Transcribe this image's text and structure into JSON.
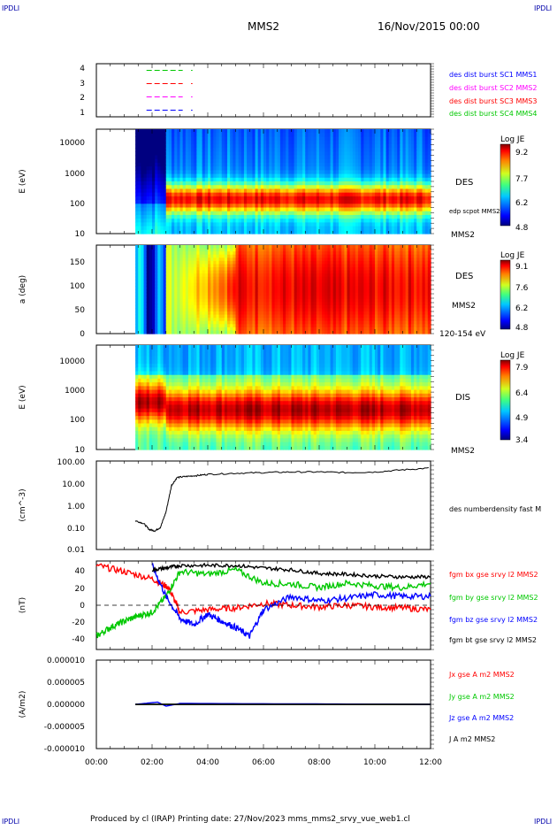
{
  "corner_label": "IPDLI",
  "header": {
    "spacecraft": "MMS2",
    "datetime": "16/Nov/2015 00:00"
  },
  "footer": {
    "text": "Produced by cl (IRAP)   Printing date: 27/Nov/2023   mms_mms2_srvy_vue_web1.cl"
  },
  "time_axis": {
    "ticks": [
      "00:00",
      "02:00",
      "04:00",
      "06:00",
      "08:00",
      "10:00",
      "12:00"
    ]
  },
  "colors": {
    "blue": "#0000ff",
    "magenta": "#ff00ff",
    "red": "#ff0000",
    "green": "#00c800",
    "black": "#000000"
  },
  "panels": {
    "burst": {
      "yticks": [
        "4",
        "3",
        "2",
        "1"
      ],
      "legend": [
        {
          "text": "des dist burst SC1 MMS1",
          "color": "#0000ff"
        },
        {
          "text": "des dist burst SC2 MMS2",
          "color": "#ff00ff"
        },
        {
          "text": "des dist burst SC3 MMS3",
          "color": "#ff0000"
        },
        {
          "text": "des dist burst SC4 MMS4",
          "color": "#00c800"
        }
      ]
    },
    "des_energy": {
      "ylabel": "E (eV)",
      "yticks": [
        "10000",
        "1000",
        "100",
        "10"
      ],
      "right_label": "DES",
      "note": "edp scpot MMS2",
      "bottom_label": "MMS2",
      "colorbar": {
        "title": "Log JE",
        "ticks": [
          "9.2",
          "7.7",
          "6.2",
          "4.8"
        ]
      }
    },
    "des_pitch": {
      "ylabel": "a (deg)",
      "yticks": [
        "150",
        "100",
        "50",
        "0"
      ],
      "right_label": "DES",
      "note": "MMS2",
      "bottom_label": "120-154 eV",
      "colorbar": {
        "title": "Log JE",
        "ticks": [
          "9.1",
          "7.6",
          "6.2",
          "4.8"
        ]
      }
    },
    "dis_energy": {
      "ylabel": "E (eV)",
      "yticks": [
        "10000",
        "1000",
        "100",
        "10"
      ],
      "right_label": "DIS",
      "bottom_label": "MMS2",
      "colorbar": {
        "title": "Log JE",
        "ticks": [
          "7.9",
          "6.4",
          "4.9",
          "3.4"
        ]
      }
    },
    "density": {
      "ylabel": "(cm^-3)",
      "yticks": [
        "100.00",
        "10.00",
        "1.00",
        "0.10",
        "0.01"
      ],
      "legend": "des numberdensity fast M"
    },
    "bfield": {
      "ylabel": "(nT)",
      "yticks": [
        "40",
        "20",
        "0",
        "-20",
        "-40"
      ],
      "legend": [
        {
          "text": "fgm bx gse srvy l2 MMS2",
          "color": "#ff0000"
        },
        {
          "text": "fgm by gse srvy l2 MMS2",
          "color": "#00c800"
        },
        {
          "text": "fgm bz gse srvy l2 MMS2",
          "color": "#0000ff"
        },
        {
          "text": "fgm bt gse srvy l2 MMS2",
          "color": "#000000"
        }
      ]
    },
    "current": {
      "ylabel": "(A/m2)",
      "yticks": [
        "0.000010",
        "0.000005",
        "0.000000",
        "-0.000005",
        "-0.000010"
      ],
      "legend": [
        {
          "text": "Jx gse A m2 MMS2",
          "color": "#ff0000"
        },
        {
          "text": "Jy gse A m2 MMS2",
          "color": "#00c800"
        },
        {
          "text": "Jz gse A m2 MMS2",
          "color": "#0000ff"
        },
        {
          "text": "J A m2 MMS2",
          "color": "#000000"
        }
      ]
    }
  },
  "chart_data": [
    {
      "type": "line",
      "panel": "burst",
      "x_unit": "hours UT",
      "ylim": [
        0.5,
        4.5
      ],
      "series": [
        {
          "y": 4,
          "segments": [
            [
              1.8,
              3.1
            ],
            [
              3.4,
              3.45
            ]
          ],
          "color": "#00c800"
        },
        {
          "y": 3,
          "segments": [
            [
              1.8,
              3.1
            ],
            [
              3.4,
              3.45
            ]
          ],
          "color": "#ff0000"
        },
        {
          "y": 2,
          "segments": [
            [
              1.8,
              3.1
            ],
            [
              3.4,
              3.45
            ]
          ],
          "color": "#ff00ff"
        },
        {
          "y": 1,
          "segments": [
            [
              1.8,
              3.1
            ],
            [
              3.4,
              3.45
            ]
          ],
          "color": "#0000ff"
        }
      ]
    },
    {
      "type": "heatmap",
      "panel": "des_energy",
      "yscale": "log",
      "ylim": [
        10,
        30000
      ],
      "data_start": 1.4,
      "data_end": 12.0,
      "profile": [
        [
          1.4,
          2.5,
          "high energy flux low energy"
        ],
        [
          2.5,
          4.5,
          "peak 60-120 eV"
        ],
        [
          4.5,
          12,
          "peak ~100 eV, band 40-400 eV"
        ]
      ]
    },
    {
      "type": "heatmap",
      "panel": "des_pitch",
      "ylim": [
        0,
        180
      ],
      "data_start": 1.4,
      "data_end": 12.0
    },
    {
      "type": "heatmap",
      "panel": "dis_energy",
      "yscale": "log",
      "ylim": [
        10,
        30000
      ],
      "data_start": 1.4,
      "data_end": 12.0,
      "profile": [
        [
          1.4,
          2.5,
          "peak ~1000 eV"
        ],
        [
          2.5,
          12,
          "band 100-3000 eV"
        ]
      ]
    },
    {
      "type": "line",
      "panel": "density",
      "yscale": "log",
      "ylim": [
        0.01,
        100
      ],
      "x": [
        1.4,
        1.7,
        1.9,
        2.1,
        2.3,
        2.5,
        2.7,
        2.9,
        3.2,
        3.6,
        4.0,
        5.0,
        6.0,
        7.0,
        8.0,
        9.0,
        10.0,
        11.0,
        12.0
      ],
      "y": [
        0.2,
        0.15,
        0.08,
        0.07,
        0.1,
        0.5,
        8,
        18,
        20,
        22,
        25,
        28,
        30,
        32,
        32,
        30,
        32,
        40,
        48
      ]
    },
    {
      "type": "line",
      "panel": "bfield",
      "ylim": [
        -50,
        50
      ],
      "series": [
        {
          "name": "fgm bx gse srvy l2 MMS2",
          "color": "#ff0000",
          "x": [
            0,
            1,
            2,
            2.6,
            3,
            4,
            5,
            6,
            7,
            8,
            9,
            10,
            11,
            12
          ],
          "y": [
            45,
            38,
            30,
            20,
            -8,
            -5,
            -3,
            2,
            0,
            -2,
            0,
            -2,
            -3,
            -5
          ]
        },
        {
          "name": "fgm by gse srvy l2 MMS2",
          "color": "#00c800",
          "x": [
            0,
            0.5,
            1,
            1.5,
            2,
            2.5,
            3,
            4,
            5,
            6,
            7,
            8,
            9,
            10,
            11,
            12
          ],
          "y": [
            -35,
            -25,
            -18,
            -12,
            -8,
            10,
            38,
            35,
            40,
            25,
            24,
            20,
            25,
            22,
            20,
            25
          ]
        },
        {
          "name": "fgm bz gse srvy l2 MMS2",
          "color": "#0000ff",
          "x": [
            2.0,
            2.5,
            3,
            3.5,
            4,
            4.5,
            5,
            5.5,
            6,
            7,
            8,
            9,
            10,
            11,
            12
          ],
          "y": [
            45,
            10,
            -15,
            -22,
            -10,
            -18,
            -25,
            -35,
            -5,
            10,
            5,
            8,
            12,
            10,
            10
          ]
        },
        {
          "name": "fgm bt gse srvy l2 MMS2",
          "color": "#000000",
          "x": [
            2.0,
            2.5,
            3,
            4,
            5,
            6,
            7,
            8,
            9,
            10,
            11,
            12
          ],
          "y": [
            40,
            42,
            45,
            45,
            45,
            42,
            40,
            36,
            35,
            33,
            32,
            32
          ]
        }
      ]
    },
    {
      "type": "line",
      "panel": "current",
      "ylim": [
        -1e-05,
        1e-05
      ],
      "series": [
        {
          "name": "Jx gse A m2 MMS2",
          "color": "#ff0000",
          "x": [
            1.4,
            12
          ],
          "y": [
            0,
            0
          ]
        },
        {
          "name": "Jy gse A m2 MMS2",
          "color": "#00c800",
          "x": [
            1.4,
            12
          ],
          "y": [
            0,
            0
          ]
        },
        {
          "name": "Jz gse A m2 MMS2",
          "color": "#0000ff",
          "x": [
            1.4,
            2.2,
            2.5,
            3.0,
            12
          ],
          "y": [
            0,
            5e-07,
            -4e-07,
            2e-07,
            0
          ]
        },
        {
          "name": "J A m2 MMS2",
          "color": "#000000",
          "x": [
            1.4,
            12
          ],
          "y": [
            0,
            0
          ]
        }
      ]
    }
  ]
}
